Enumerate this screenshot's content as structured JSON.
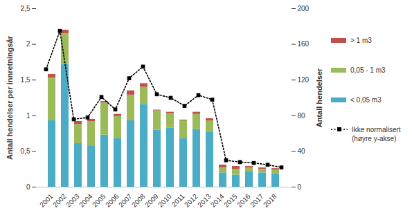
{
  "chart_data": {
    "type": "bar",
    "stacked": true,
    "categories": [
      "2001",
      "2002",
      "2003",
      "2004",
      "2005",
      "2006",
      "2007",
      "2008",
      "2009",
      "2010",
      "2011",
      "2012",
      "2013",
      "2014",
      "2015",
      "2016",
      "2017",
      "2018"
    ],
    "y_label": "Antall hendelser per innretningsår",
    "y2_label": "Antall hendelser",
    "ylim": [
      0,
      2.5
    ],
    "yticks": [
      0,
      {
        "value": 0.5,
        "label": "0,5"
      },
      1,
      {
        "value": 1.5,
        "label": "1,5"
      },
      2,
      {
        "value": 2.5,
        "label": "2,5"
      }
    ],
    "y2lim": [
      0,
      200
    ],
    "y2ticks": [
      0,
      40,
      80,
      120,
      160,
      200
    ],
    "grid": false,
    "legend": "right",
    "series": [
      {
        "name": "< 0,05 m3",
        "color": "#4bacc6",
        "values": [
          0.93,
          1.72,
          0.61,
          0.58,
          0.73,
          0.68,
          0.93,
          1.16,
          0.8,
          0.83,
          0.68,
          0.81,
          0.78,
          0.2,
          0.17,
          0.22,
          0.2,
          0.19
        ]
      },
      {
        "name": "0,05 - 1 m3",
        "color": "#9bbb59",
        "values": [
          0.6,
          0.43,
          0.27,
          0.34,
          0.45,
          0.31,
          0.36,
          0.24,
          0.27,
          0.2,
          0.25,
          0.21,
          0.15,
          0.07,
          0.08,
          0.05,
          0.05,
          0.05
        ]
      },
      {
        "name": "> 1 m3",
        "color": "#c0504d",
        "values": [
          0.05,
          0.05,
          0.04,
          0.03,
          0.02,
          0.03,
          0.06,
          0.05,
          0.01,
          0.02,
          0.01,
          0.03,
          0.03,
          0.04,
          0.04,
          0.02,
          0.02,
          0.02
        ]
      },
      {
        "name": "Ikke normalisert (høyre y-akse)",
        "type": "line",
        "axis": "y2",
        "color": "#000000",
        "line_style": "dotted",
        "marker": "square",
        "values": [
          132,
          175,
          76,
          78,
          101,
          87,
          122,
          135,
          104,
          100,
          91,
          103,
          98,
          30,
          28,
          27,
          25,
          22
        ]
      }
    ]
  }
}
